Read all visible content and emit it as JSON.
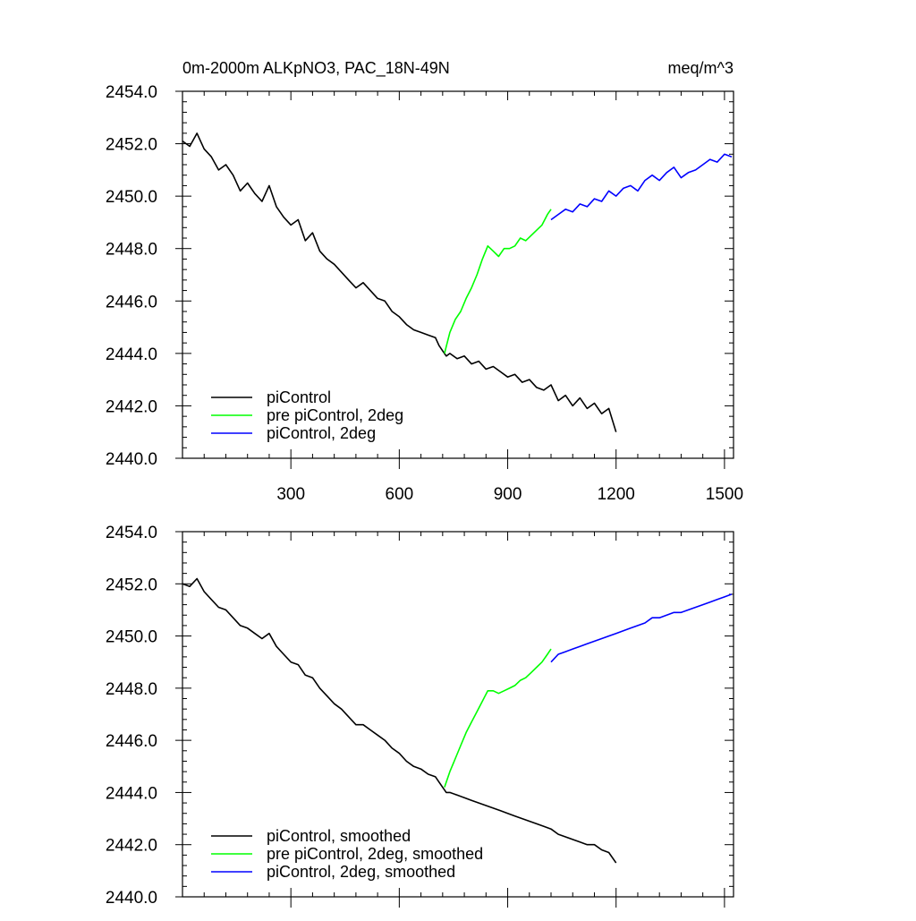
{
  "header": {
    "title_left": "0m-2000m ALKpNO3, PAC_18N-49N",
    "title_right": "meq/m^3"
  },
  "chart_data": [
    {
      "type": "line",
      "title": "0m-2000m ALKpNO3, PAC_18N-49N",
      "units": "meq/m^3",
      "xlim": [
        0,
        1525
      ],
      "ylim": [
        2440,
        2454
      ],
      "x_ticks": [
        300,
        600,
        900,
        1200,
        1500
      ],
      "x_tick_labels": [
        "300",
        "600",
        "900",
        "1200",
        "1500"
      ],
      "y_ticks": [
        2440,
        2442,
        2444,
        2446,
        2448,
        2450,
        2452,
        2454
      ],
      "y_tick_labels": [
        "2440.0",
        "2442.0",
        "2444.0",
        "2446.0",
        "2448.0",
        "2450.0",
        "2452.0",
        "2454.0"
      ],
      "legend_position": "bottom-left",
      "series": [
        {
          "name": "piControl",
          "color": "#000000",
          "x": [
            0,
            20,
            40,
            60,
            80,
            100,
            120,
            140,
            160,
            180,
            200,
            220,
            240,
            260,
            280,
            300,
            320,
            340,
            360,
            380,
            400,
            420,
            440,
            460,
            480,
            500,
            520,
            540,
            560,
            580,
            600,
            620,
            640,
            660,
            680,
            700,
            710,
            720,
            730,
            740,
            760,
            780,
            800,
            820,
            840,
            860,
            880,
            900,
            920,
            940,
            960,
            980,
            1000,
            1020,
            1040,
            1060,
            1080,
            1100,
            1120,
            1140,
            1160,
            1180,
            1200
          ],
          "y": [
            2452.1,
            2451.9,
            2452.4,
            2451.8,
            2451.5,
            2451.0,
            2451.2,
            2450.8,
            2450.2,
            2450.5,
            2450.1,
            2449.8,
            2450.4,
            2449.6,
            2449.2,
            2448.9,
            2449.1,
            2448.3,
            2448.6,
            2447.9,
            2447.6,
            2447.4,
            2447.1,
            2446.8,
            2446.5,
            2446.7,
            2446.4,
            2446.1,
            2446.0,
            2445.6,
            2445.4,
            2445.1,
            2444.9,
            2444.8,
            2444.7,
            2444.6,
            2444.3,
            2444.1,
            2443.9,
            2444.0,
            2443.8,
            2443.9,
            2443.6,
            2443.7,
            2443.4,
            2443.5,
            2443.3,
            2443.1,
            2443.2,
            2442.9,
            2443.0,
            2442.7,
            2442.6,
            2442.8,
            2442.2,
            2442.4,
            2442.0,
            2442.3,
            2441.9,
            2442.1,
            2441.7,
            2441.9,
            2441.0
          ]
        },
        {
          "name": "pre piControl, 2deg",
          "color": "#00ff00",
          "x": [
            725,
            740,
            755,
            770,
            785,
            800,
            815,
            830,
            845,
            860,
            875,
            890,
            905,
            920,
            935,
            950,
            965,
            980,
            995,
            1010,
            1020
          ],
          "y": [
            2444.0,
            2444.8,
            2445.3,
            2445.6,
            2446.1,
            2446.5,
            2447.0,
            2447.6,
            2448.1,
            2447.9,
            2447.7,
            2448.0,
            2448.0,
            2448.1,
            2448.4,
            2448.3,
            2448.5,
            2448.7,
            2448.9,
            2449.3,
            2449.5
          ]
        },
        {
          "name": "piControl, 2deg",
          "color": "#0000ff",
          "x": [
            1020,
            1040,
            1060,
            1080,
            1100,
            1120,
            1140,
            1160,
            1180,
            1200,
            1220,
            1240,
            1260,
            1280,
            1300,
            1320,
            1340,
            1360,
            1380,
            1400,
            1420,
            1440,
            1460,
            1480,
            1500,
            1520
          ],
          "y": [
            2449.1,
            2449.3,
            2449.5,
            2449.4,
            2449.7,
            2449.6,
            2449.9,
            2449.8,
            2450.2,
            2450.0,
            2450.3,
            2450.4,
            2450.2,
            2450.6,
            2450.8,
            2450.6,
            2450.9,
            2451.1,
            2450.7,
            2450.9,
            2451.0,
            2451.2,
            2451.4,
            2451.3,
            2451.6,
            2451.5
          ]
        }
      ]
    },
    {
      "type": "line",
      "xlim": [
        0,
        1525
      ],
      "ylim": [
        2440,
        2454
      ],
      "x_ticks": [
        300,
        600,
        900,
        1200,
        1500
      ],
      "y_ticks": [
        2440,
        2442,
        2444,
        2446,
        2448,
        2450,
        2452,
        2454
      ],
      "y_tick_labels": [
        "2440.0",
        "2442.0",
        "2444.0",
        "2446.0",
        "2448.0",
        "2450.0",
        "2452.0",
        "2454.0"
      ],
      "legend_position": "bottom-left",
      "series": [
        {
          "name": "piControl, smoothed",
          "color": "#000000",
          "x": [
            0,
            20,
            40,
            60,
            80,
            100,
            120,
            140,
            160,
            180,
            200,
            220,
            240,
            260,
            280,
            300,
            320,
            340,
            360,
            380,
            400,
            420,
            440,
            460,
            480,
            500,
            520,
            540,
            560,
            580,
            600,
            620,
            640,
            660,
            680,
            700,
            710,
            720,
            730,
            740,
            760,
            780,
            800,
            820,
            840,
            860,
            880,
            900,
            920,
            940,
            960,
            980,
            1000,
            1020,
            1040,
            1060,
            1080,
            1100,
            1120,
            1140,
            1160,
            1180,
            1200
          ],
          "y": [
            2452.0,
            2451.9,
            2452.2,
            2451.7,
            2451.4,
            2451.1,
            2451.0,
            2450.7,
            2450.4,
            2450.3,
            2450.1,
            2449.9,
            2450.1,
            2449.6,
            2449.3,
            2449.0,
            2448.9,
            2448.5,
            2448.4,
            2448.0,
            2447.7,
            2447.4,
            2447.2,
            2446.9,
            2446.6,
            2446.6,
            2446.4,
            2446.2,
            2446.0,
            2445.7,
            2445.5,
            2445.2,
            2445.0,
            2444.9,
            2444.7,
            2444.6,
            2444.4,
            2444.2,
            2444.0,
            2444.0,
            2443.9,
            2443.8,
            2443.7,
            2443.6,
            2443.5,
            2443.4,
            2443.3,
            2443.2,
            2443.1,
            2443.0,
            2442.9,
            2442.8,
            2442.7,
            2442.6,
            2442.4,
            2442.3,
            2442.2,
            2442.1,
            2442.0,
            2442.0,
            2441.8,
            2441.7,
            2441.3
          ]
        },
        {
          "name": "pre piControl, 2deg, smoothed",
          "color": "#00ff00",
          "x": [
            725,
            740,
            755,
            770,
            785,
            800,
            815,
            830,
            845,
            860,
            875,
            890,
            905,
            920,
            935,
            950,
            965,
            980,
            995,
            1010,
            1020
          ],
          "y": [
            2444.2,
            2444.8,
            2445.3,
            2445.8,
            2446.3,
            2446.7,
            2447.1,
            2447.5,
            2447.9,
            2447.9,
            2447.8,
            2447.9,
            2448.0,
            2448.1,
            2448.3,
            2448.4,
            2448.6,
            2448.8,
            2449.0,
            2449.3,
            2449.5
          ]
        },
        {
          "name": "piControl, 2deg, smoothed",
          "color": "#0000ff",
          "x": [
            1020,
            1040,
            1060,
            1080,
            1100,
            1120,
            1140,
            1160,
            1180,
            1200,
            1220,
            1240,
            1260,
            1280,
            1300,
            1320,
            1340,
            1360,
            1380,
            1400,
            1420,
            1440,
            1460,
            1480,
            1500,
            1520
          ],
          "y": [
            2449.0,
            2449.3,
            2449.4,
            2449.5,
            2449.6,
            2449.7,
            2449.8,
            2449.9,
            2450.0,
            2450.1,
            2450.2,
            2450.3,
            2450.4,
            2450.5,
            2450.7,
            2450.7,
            2450.8,
            2450.9,
            2450.9,
            2451.0,
            2451.1,
            2451.2,
            2451.3,
            2451.4,
            2451.5,
            2451.6
          ]
        }
      ]
    }
  ]
}
